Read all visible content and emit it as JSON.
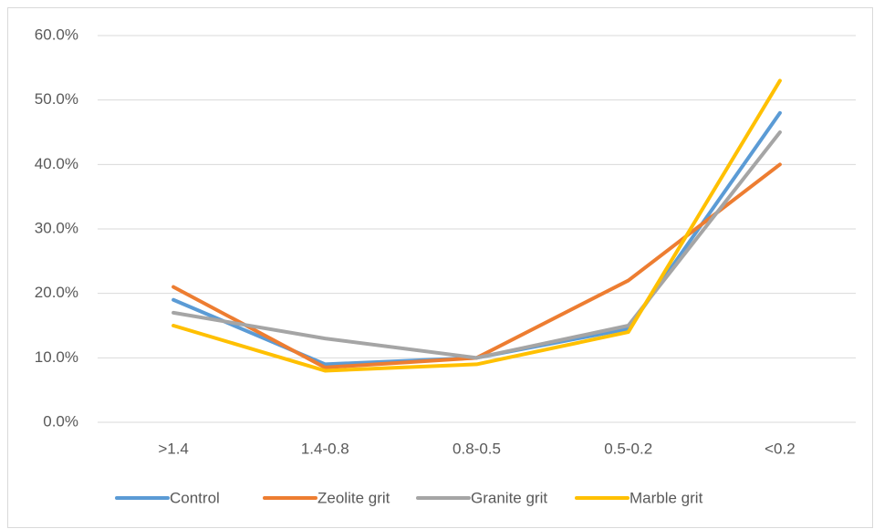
{
  "chart_data": {
    "type": "line",
    "categories": [
      ">1.4",
      "1.4-0.8",
      "0.8-0.5",
      "0.5-0.2",
      "<0.2"
    ],
    "series": [
      {
        "name": "Control",
        "color": "#5b9bd5",
        "values": [
          19,
          9,
          10,
          14.5,
          48
        ]
      },
      {
        "name": "Zeolite grit",
        "color": "#ed7d31",
        "values": [
          21,
          8.5,
          10,
          22,
          40
        ]
      },
      {
        "name": "Granite grit",
        "color": "#a5a5a5",
        "values": [
          17,
          13,
          10,
          15,
          45
        ]
      },
      {
        "name": "Marble grit",
        "color": "#ffc000",
        "values": [
          15,
          8,
          9,
          14,
          53
        ]
      }
    ],
    "ylim": [
      0,
      60
    ],
    "yticks": [
      {
        "value": 0,
        "label": "0.0%"
      },
      {
        "value": 10,
        "label": "10.0%"
      },
      {
        "value": 20,
        "label": "20.0%"
      },
      {
        "value": 30,
        "label": "30.0%"
      },
      {
        "value": 40,
        "label": "40.0%"
      },
      {
        "value": 50,
        "label": "50.0%"
      },
      {
        "value": 60,
        "label": "60.0%"
      }
    ],
    "grid": true,
    "legend": "bottom"
  }
}
